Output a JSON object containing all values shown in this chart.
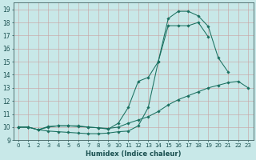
{
  "xlabel": "Humidex (Indice chaleur)",
  "bg_color": "#c8e8e8",
  "grid_color": "#b0c8c8",
  "line_color": "#1a7060",
  "xlim": [
    -0.5,
    23.5
  ],
  "ylim": [
    9.0,
    19.5
  ],
  "yticks": [
    9,
    10,
    11,
    12,
    13,
    14,
    15,
    16,
    17,
    18,
    19
  ],
  "xticks": [
    0,
    1,
    2,
    3,
    4,
    5,
    6,
    7,
    8,
    9,
    10,
    11,
    12,
    13,
    14,
    15,
    16,
    17,
    18,
    19,
    20,
    21,
    22,
    23
  ],
  "line1_x": [
    0,
    1,
    2,
    3,
    4,
    5,
    6,
    7,
    8,
    9,
    10,
    11,
    12,
    13,
    14,
    15,
    16,
    17,
    18,
    19,
    20,
    21,
    22,
    23
  ],
  "line1_y": [
    10.0,
    10.0,
    9.8,
    9.7,
    9.65,
    9.6,
    9.55,
    9.5,
    9.5,
    9.55,
    9.65,
    9.7,
    10.1,
    11.5,
    15.0,
    17.75,
    17.75,
    17.75,
    18.0,
    16.9,
    null,
    null,
    null,
    null
  ],
  "line2_x": [
    0,
    1,
    2,
    3,
    4,
    5,
    6,
    7,
    8,
    9,
    10,
    11,
    12,
    13,
    14,
    15,
    16,
    17,
    18,
    19,
    20,
    21,
    22,
    23
  ],
  "line2_y": [
    10.0,
    10.0,
    9.8,
    10.05,
    10.1,
    10.1,
    10.1,
    10.0,
    9.95,
    9.9,
    10.0,
    10.3,
    10.55,
    10.8,
    11.2,
    11.7,
    12.1,
    12.4,
    12.7,
    13.0,
    13.2,
    13.4,
    13.5,
    13.0
  ],
  "line3_x": [
    0,
    1,
    2,
    3,
    4,
    5,
    6,
    7,
    8,
    9,
    10,
    11,
    12,
    13,
    14,
    15,
    16,
    17,
    18,
    19,
    20,
    21,
    22,
    23
  ],
  "line3_y": [
    10.0,
    10.0,
    9.8,
    10.0,
    10.1,
    10.1,
    10.05,
    10.0,
    9.95,
    9.85,
    10.3,
    11.5,
    13.5,
    13.8,
    15.0,
    18.3,
    18.85,
    18.85,
    18.5,
    17.7,
    15.3,
    14.2,
    null,
    null
  ]
}
